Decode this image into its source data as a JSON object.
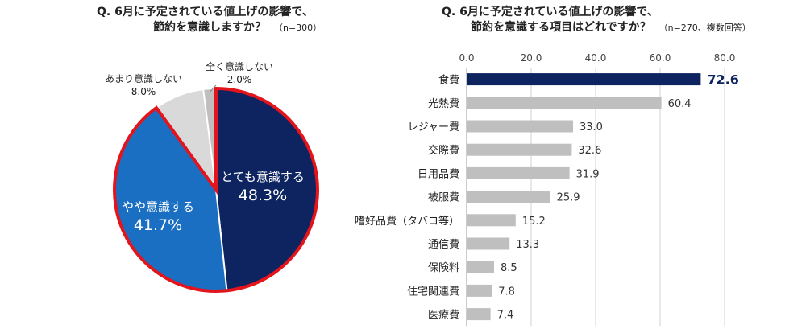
{
  "left_title": {
    "line1": "Q. 6月に予定されている値上げの影響で、",
    "line2": "節約を意識しますか？",
    "n": "（n=300）"
  },
  "right_title": {
    "line1": "Q. 6月に予定されている値上げの影響で、",
    "line2": "節約を意識する項目はどれですか？",
    "n": "（n=270、複数回答）"
  },
  "chart_data": [
    {
      "type": "pie",
      "slices": [
        {
          "label": "とても意識する",
          "value": 48.3,
          "display": "48.3%",
          "color": "#0e2461"
        },
        {
          "label": "やや意識する",
          "value": 41.7,
          "display": "41.7%",
          "color": "#1b6fc2"
        },
        {
          "label": "あまり意識しない",
          "value": 8.0,
          "display": "8.0%",
          "color": "#d9d9d9"
        },
        {
          "label": "全く意識しない",
          "value": 2.0,
          "display": "2.0%",
          "color": "#bfbfbf"
        }
      ],
      "highlight_outline": "#e3141b"
    },
    {
      "type": "bar",
      "orientation": "horizontal",
      "categories": [
        "食費",
        "光熱費",
        "レジャー費",
        "交際費",
        "日用品費",
        "被服費",
        "嗜好品費（タバコ等）",
        "通信費",
        "保険料",
        "住宅関連費",
        "医療費"
      ],
      "values": [
        72.6,
        60.4,
        33.0,
        32.6,
        31.9,
        25.9,
        15.2,
        13.3,
        8.5,
        7.8,
        7.4
      ],
      "value_labels": [
        "72.6",
        "60.4",
        "33.0",
        "32.6",
        "31.9",
        "25.9",
        "15.2",
        "13.3",
        "8.5",
        "7.8",
        "7.4"
      ],
      "xlim": [
        0,
        80
      ],
      "xticks": [
        "0.0",
        "20.0",
        "40.0",
        "60.0",
        "80.0"
      ],
      "grid": true,
      "highlight_color": "#0e2461",
      "bar_color": "#bfbfbf"
    }
  ]
}
